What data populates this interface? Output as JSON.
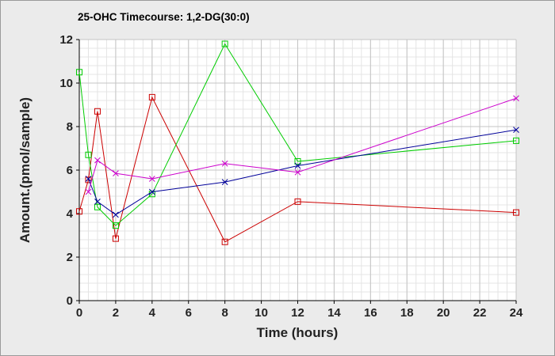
{
  "chart_data": {
    "type": "line",
    "title": "25-OHC Timecourse: 1,2-DG(30:0)",
    "xlabel": "Time (hours)",
    "ylabel": "Amount.(pmol/sample)",
    "xlim": [
      0,
      24
    ],
    "ylim": [
      0,
      12
    ],
    "xticks": [
      "0",
      "2",
      "4",
      "6",
      "8",
      "10",
      "12",
      "14",
      "16",
      "18",
      "20",
      "22",
      "24"
    ],
    "yticks": [
      "0",
      "2",
      "4",
      "6",
      "8",
      "10",
      "12"
    ],
    "grid": true,
    "legend": "none",
    "series": [
      {
        "color": "#cc0000",
        "marker": "square",
        "x": [
          0,
          0.5,
          1,
          2,
          4,
          8,
          12,
          24
        ],
        "y": [
          4.1,
          5.55,
          8.7,
          2.85,
          9.35,
          2.7,
          4.55,
          4.05
        ]
      },
      {
        "color": "#00cc00",
        "marker": "square",
        "x": [
          0,
          0.5,
          1,
          2,
          4,
          8,
          12,
          24
        ],
        "y": [
          10.5,
          6.7,
          4.3,
          3.45,
          4.9,
          11.8,
          6.4,
          7.35
        ]
      },
      {
        "color": "#000099",
        "marker": "x",
        "x": [
          0.5,
          1,
          2,
          4,
          8,
          12,
          24
        ],
        "y": [
          5.6,
          4.55,
          3.95,
          5.0,
          5.45,
          6.2,
          7.85
        ]
      },
      {
        "color": "#cc00cc",
        "marker": "x",
        "x": [
          0.5,
          1,
          2,
          4,
          8,
          12,
          24
        ],
        "y": [
          5.0,
          6.45,
          5.85,
          5.6,
          6.3,
          5.9,
          9.3
        ]
      }
    ]
  }
}
